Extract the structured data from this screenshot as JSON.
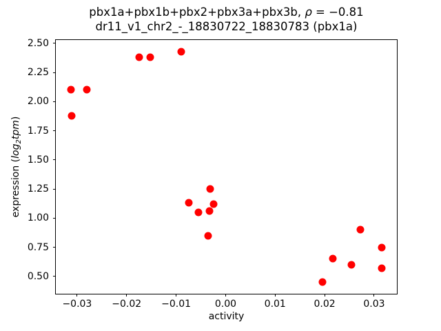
{
  "figure": {
    "background": "#ffffff",
    "title_line1": {
      "prefix": "pbx1a+pbx1b+pbx2+pbx3a+pbx3b, ",
      "rho": "ρ",
      "suffix": " = −0.81"
    },
    "title_line2": "dr11_v1_chr2_-_18830722_18830783 (pbx1a)",
    "xlabel": "activity",
    "ylabel_parts": {
      "prefix": "expression (",
      "log": "log",
      "sub": "2",
      "tpm": "tpm",
      "suffix": ")"
    }
  },
  "chart_data": {
    "type": "scatter",
    "title": "pbx1a+pbx1b+pbx2+pbx3a+pbx3b, ρ = −0.81",
    "subtitle": "dr11_v1_chr2_-_18830722_18830783 (pbx1a)",
    "xlabel": "activity",
    "ylabel": "expression (log₂tpm)",
    "xlim": [
      -0.0343,
      0.0346
    ],
    "ylim": [
      0.351,
      2.529
    ],
    "x_ticks": [
      -0.03,
      -0.02,
      -0.01,
      0.0,
      0.01,
      0.02,
      0.03
    ],
    "x_tick_labels": [
      "−0.03",
      "−0.02",
      "−0.01",
      "0.00",
      "0.01",
      "0.02",
      "0.03"
    ],
    "y_ticks": [
      0.5,
      0.75,
      1.0,
      1.25,
      1.5,
      1.75,
      2.0,
      2.25,
      2.5
    ],
    "y_tick_labels": [
      "0.50",
      "0.75",
      "1.00",
      "1.25",
      "1.50",
      "1.75",
      "2.00",
      "2.25",
      "2.50"
    ],
    "grid": false,
    "marker_color": "#ff0000",
    "marker_shape": "circle",
    "points": [
      {
        "x": -0.0312,
        "y": 2.1
      },
      {
        "x": -0.0281,
        "y": 2.1
      },
      {
        "x": -0.0311,
        "y": 1.88
      },
      {
        "x": -0.0175,
        "y": 2.38
      },
      {
        "x": -0.0153,
        "y": 2.38
      },
      {
        "x": -0.009,
        "y": 2.43
      },
      {
        "x": -0.0074,
        "y": 1.13
      },
      {
        "x": -0.0031,
        "y": 1.25
      },
      {
        "x": -0.0024,
        "y": 1.12
      },
      {
        "x": -0.0055,
        "y": 1.05
      },
      {
        "x": -0.0033,
        "y": 1.06
      },
      {
        "x": -0.0035,
        "y": 0.85
      },
      {
        "x": 0.0196,
        "y": 0.45
      },
      {
        "x": 0.0216,
        "y": 0.65
      },
      {
        "x": 0.0254,
        "y": 0.6
      },
      {
        "x": 0.0272,
        "y": 0.9
      },
      {
        "x": 0.0315,
        "y": 0.75
      },
      {
        "x": 0.0315,
        "y": 0.57
      }
    ]
  }
}
